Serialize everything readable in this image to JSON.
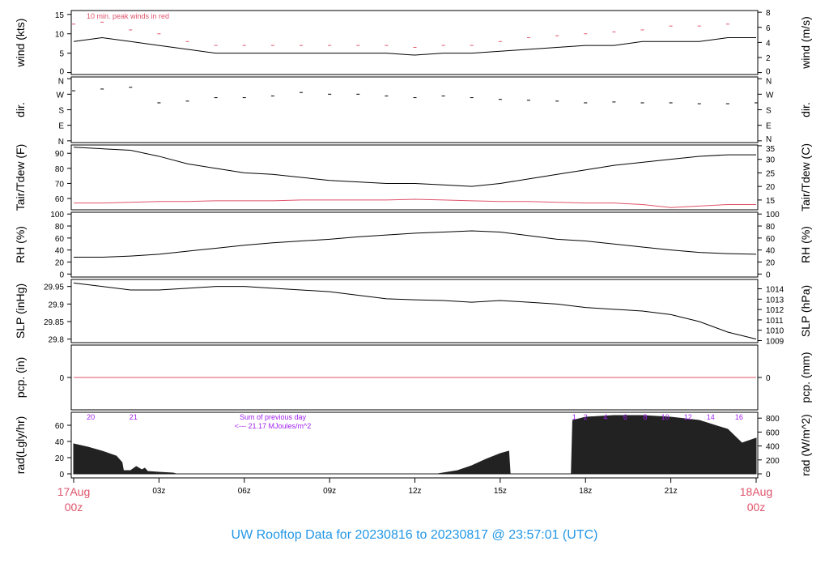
{
  "title": "UW Rooftop Data for 20230816  to  20230817 @ 23:57:01  (UTC)",
  "colors": {
    "line": "#000000",
    "red": "#df536b",
    "purple": "#a020f0",
    "title": "#2297e6"
  },
  "chart_data": [
    {
      "id": "wind",
      "type": "line",
      "ylabel": "wind (kts)",
      "ylabel_right": "wind (m/s)",
      "ylim": [
        -0.5,
        16
      ],
      "yticks": [
        0,
        5,
        10,
        15
      ],
      "yticks_right": [
        0,
        2,
        4,
        6,
        8
      ],
      "annotation": "10 min. peak winds in red",
      "x": [
        0,
        1,
        2,
        3,
        4,
        5,
        6,
        7,
        8,
        9,
        10,
        11,
        12,
        13,
        14,
        15,
        16,
        17,
        18,
        19,
        20,
        21,
        22,
        23,
        24
      ],
      "series": [
        {
          "values": [
            8,
            9,
            8,
            7,
            6,
            5,
            5,
            5,
            5,
            5,
            5,
            5,
            4.5,
            5,
            5,
            5.5,
            6,
            6.5,
            7,
            7,
            8,
            8,
            8,
            9,
            9
          ]
        },
        {
          "values": [
            12.5,
            13,
            11,
            10,
            8,
            7,
            7,
            7,
            7,
            7,
            7,
            7,
            6.5,
            7,
            7,
            8,
            9,
            9.5,
            10,
            10.5,
            11,
            12,
            12,
            12.5,
            13
          ],
          "color": "red",
          "style": "dash"
        }
      ]
    },
    {
      "id": "dir",
      "type": "scatter",
      "ylabel": "dir.",
      "ylabel_right": "dir.",
      "ylim": [
        -10,
        370
      ],
      "yticks": [
        0,
        90,
        180,
        270,
        360
      ],
      "ytick_labels": [
        "N",
        "E",
        "S",
        "W",
        "N"
      ],
      "x": [
        0,
        1,
        2,
        3,
        4,
        5,
        6,
        7,
        8,
        9,
        10,
        11,
        12,
        13,
        14,
        15,
        16,
        17,
        18,
        19,
        20,
        21,
        22,
        23,
        24
      ],
      "series": [
        {
          "values": [
            290,
            300,
            310,
            220,
            230,
            250,
            250,
            260,
            280,
            270,
            270,
            260,
            250,
            260,
            250,
            240,
            235,
            230,
            220,
            225,
            220,
            220,
            215,
            215,
            220
          ]
        }
      ]
    },
    {
      "id": "temp",
      "type": "line",
      "ylabel": "Tair/Tdew (F)",
      "ylabel_right": "Tair/Tdew (C)",
      "ylim": [
        52.5,
        95.5
      ],
      "yticks": [
        60,
        70,
        80,
        90
      ],
      "yticks_right": [
        15,
        20,
        25,
        30,
        35
      ],
      "x": [
        0,
        1,
        2,
        3,
        4,
        5,
        6,
        7,
        8,
        9,
        10,
        11,
        12,
        13,
        14,
        15,
        16,
        17,
        18,
        19,
        20,
        21,
        22,
        23,
        24
      ],
      "series": [
        {
          "name": "Tair",
          "values": [
            94,
            93,
            92,
            88,
            83,
            80,
            77,
            76,
            74,
            72,
            71,
            70,
            70,
            69,
            68,
            70,
            73,
            76,
            79,
            82,
            84,
            86,
            88,
            89,
            89
          ]
        },
        {
          "name": "Tdew",
          "color": "red",
          "values": [
            57,
            57,
            57.5,
            58,
            58,
            58.5,
            58.5,
            58.5,
            59,
            59,
            59,
            59,
            59.5,
            59,
            58.5,
            58,
            58,
            57.5,
            57,
            57,
            56,
            54,
            55,
            56,
            56
          ]
        }
      ]
    },
    {
      "id": "rh",
      "type": "line",
      "ylabel": "RH (%)",
      "ylabel_right": "RH (%)",
      "ylim": [
        -5,
        103
      ],
      "yticks": [
        0,
        20,
        40,
        60,
        80,
        100
      ],
      "yticks_right": [
        0,
        20,
        40,
        60,
        80,
        100
      ],
      "x": [
        0,
        1,
        2,
        3,
        4,
        5,
        6,
        7,
        8,
        9,
        10,
        11,
        12,
        13,
        14,
        15,
        16,
        17,
        18,
        19,
        20,
        21,
        22,
        23,
        24
      ],
      "series": [
        {
          "values": [
            28,
            28,
            30,
            33,
            38,
            43,
            48,
            52,
            55,
            58,
            62,
            65,
            68,
            70,
            72,
            70,
            64,
            58,
            55,
            50,
            45,
            40,
            36,
            34,
            33
          ]
        }
      ]
    },
    {
      "id": "slp",
      "type": "line",
      "ylabel": "SLP (inHg)",
      "ylabel_right": "SLP (hPa)",
      "ylim": [
        29.79,
        29.97
      ],
      "yticks": [
        29.8,
        29.85,
        29.9,
        29.95
      ],
      "yticks_right": [
        1009,
        1010,
        1011,
        1012,
        1013,
        1014
      ],
      "x": [
        0,
        1,
        2,
        3,
        4,
        5,
        6,
        7,
        8,
        9,
        10,
        11,
        12,
        13,
        14,
        15,
        16,
        17,
        18,
        19,
        20,
        21,
        22,
        23,
        24
      ],
      "series": [
        {
          "values": [
            29.96,
            29.95,
            29.94,
            29.94,
            29.945,
            29.95,
            29.95,
            29.945,
            29.94,
            29.935,
            29.925,
            29.915,
            29.912,
            29.91,
            29.905,
            29.91,
            29.905,
            29.9,
            29.89,
            29.885,
            29.88,
            29.87,
            29.85,
            29.82,
            29.8
          ]
        }
      ]
    },
    {
      "id": "pcp",
      "type": "line",
      "ylabel": "pcp. (in)",
      "ylabel_right": "pcp. (mm)",
      "ylim": [
        -1,
        1
      ],
      "yticks": [
        0
      ],
      "yticks_right": [
        0
      ],
      "x": [
        0,
        24
      ],
      "series": [
        {
          "values": [
            0,
            0
          ],
          "color": "red"
        }
      ]
    },
    {
      "id": "rad",
      "type": "area",
      "ylabel": "rad(Lgly/hr)",
      "ylabel_right": "rad (W/m^2)",
      "ylim": [
        -5,
        76
      ],
      "yticks": [
        0,
        20,
        40,
        60
      ],
      "yticks_right": [
        0,
        200,
        400,
        600,
        800
      ],
      "annotation": [
        "Sum of previous day",
        "<--- 21.17 MJoules/m^2"
      ],
      "hour_marks": [
        {
          "x": 0.6,
          "label": "20"
        },
        {
          "x": 2.1,
          "label": "21"
        },
        {
          "x": 17.6,
          "label": "1"
        },
        {
          "x": 18.0,
          "label": "2"
        },
        {
          "x": 18.7,
          "label": "4"
        },
        {
          "x": 19.4,
          "label": "6"
        },
        {
          "x": 20.1,
          "label": "8"
        },
        {
          "x": 20.8,
          "label": "10"
        },
        {
          "x": 21.6,
          "label": "12"
        },
        {
          "x": 22.4,
          "label": "14"
        },
        {
          "x": 23.4,
          "label": "16"
        }
      ],
      "x": [
        0,
        0.5,
        1,
        1.5,
        1.7,
        1.75,
        2,
        2.2,
        2.4,
        2.5,
        2.6,
        3,
        3.5,
        3.6,
        12.8,
        13.5,
        14,
        14.5,
        15,
        15.3,
        15.35,
        17.5,
        17.55,
        18,
        19,
        20,
        21,
        22,
        23,
        23.5,
        24
      ],
      "series": [
        {
          "values": [
            37,
            33,
            28,
            22,
            14,
            4,
            4,
            9,
            5,
            7,
            3,
            2,
            1,
            0,
            0,
            4,
            10,
            18,
            25,
            28,
            0,
            0,
            66,
            70,
            72,
            72,
            70,
            66,
            55,
            38,
            44
          ]
        }
      ]
    }
  ],
  "x_axis": {
    "ticks": [
      3,
      6,
      9,
      12,
      15,
      18,
      21
    ],
    "labels": [
      "03z",
      "06z",
      "09z",
      "12z",
      "15z",
      "18z",
      "21z"
    ],
    "start_label": [
      "17Aug",
      "00z"
    ],
    "end_label": [
      "18Aug",
      "00z"
    ]
  }
}
